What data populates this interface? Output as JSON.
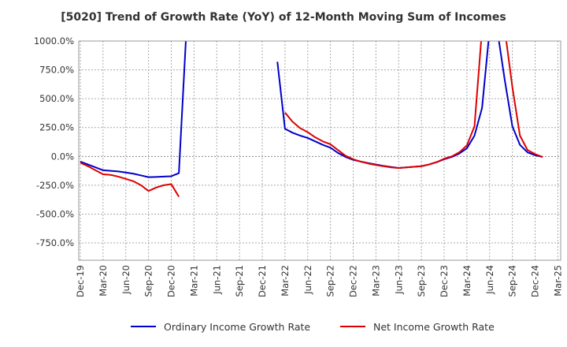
{
  "chart_data": {
    "type": "line",
    "title": "[5020]  Trend of Growth Rate (YoY) of 12-Month Moving Sum of Incomes",
    "xlabel": "",
    "ylabel": "",
    "ylim": [
      -900,
      1000
    ],
    "y_ticks": [
      1000,
      750,
      500,
      250,
      0,
      -250,
      -500,
      -750
    ],
    "y_tick_labels": [
      "1000.0%",
      "750.0%",
      "500.0%",
      "250.0%",
      "0.0%",
      "-250.0%",
      "-500.0%",
      "-750.0%"
    ],
    "x_ticks": [
      "Dec-19",
      "Mar-20",
      "Jun-20",
      "Sep-20",
      "Dec-20",
      "Mar-21",
      "Jun-21",
      "Sep-21",
      "Dec-21",
      "Mar-22",
      "Jun-22",
      "Sep-22",
      "Dec-22",
      "Mar-23",
      "Jun-23",
      "Sep-23",
      "Dec-23",
      "Mar-24",
      "Jun-24",
      "Sep-24",
      "Dec-24",
      "Mar-25"
    ],
    "grid": true,
    "legend_position": "bottom",
    "series": [
      {
        "name": "Ordinary Income Growth Rate",
        "color": "#0000cc",
        "points": [
          [
            "2019-12",
            -45
          ],
          [
            "2020-01",
            -70
          ],
          [
            "2020-02",
            -95
          ],
          [
            "2020-03",
            -120
          ],
          [
            "2020-04",
            -125
          ],
          [
            "2020-05",
            -130
          ],
          [
            "2020-06",
            -140
          ],
          [
            "2020-07",
            -150
          ],
          [
            "2020-08",
            -165
          ],
          [
            "2020-09",
            -180
          ],
          [
            "2020-10",
            -178
          ],
          [
            "2020-11",
            -175
          ],
          [
            "2020-12",
            -172
          ],
          [
            "2021-01",
            -145
          ],
          [
            "2021-02",
            1100
          ],
          null,
          [
            "2022-02",
            820
          ],
          [
            "2022-03",
            240
          ],
          [
            "2022-04",
            205
          ],
          [
            "2022-05",
            180
          ],
          [
            "2022-06",
            160
          ],
          [
            "2022-07",
            130
          ],
          [
            "2022-08",
            100
          ],
          [
            "2022-09",
            75
          ],
          [
            "2022-10",
            30
          ],
          [
            "2022-11",
            -5
          ],
          [
            "2022-12",
            -30
          ],
          [
            "2023-01",
            -45
          ],
          [
            "2023-02",
            -58
          ],
          [
            "2023-03",
            -70
          ],
          [
            "2023-04",
            -82
          ],
          [
            "2023-05",
            -92
          ],
          [
            "2023-06",
            -100
          ],
          [
            "2023-07",
            -95
          ],
          [
            "2023-08",
            -90
          ],
          [
            "2023-09",
            -85
          ],
          [
            "2023-10",
            -70
          ],
          [
            "2023-11",
            -50
          ],
          [
            "2023-12",
            -25
          ],
          [
            "2024-01",
            -5
          ],
          [
            "2024-02",
            25
          ],
          [
            "2024-03",
            70
          ],
          [
            "2024-04",
            180
          ],
          [
            "2024-05",
            420
          ],
          [
            "2024-06",
            1100
          ],
          [
            "2024-07",
            1100
          ],
          [
            "2024-08",
            660
          ],
          [
            "2024-09",
            260
          ],
          [
            "2024-10",
            100
          ],
          [
            "2024-11",
            35
          ],
          [
            "2024-12",
            10
          ],
          [
            "2025-01",
            -5
          ]
        ]
      },
      {
        "name": "Net Income Growth Rate",
        "color": "#dd0000",
        "points": [
          [
            "2019-12",
            -55
          ],
          [
            "2020-01",
            -85
          ],
          [
            "2020-02",
            -120
          ],
          [
            "2020-03",
            -155
          ],
          [
            "2020-04",
            -160
          ],
          [
            "2020-05",
            -175
          ],
          [
            "2020-06",
            -195
          ],
          [
            "2020-07",
            -215
          ],
          [
            "2020-08",
            -250
          ],
          [
            "2020-09",
            -300
          ],
          [
            "2020-10",
            -270
          ],
          [
            "2020-11",
            -250
          ],
          [
            "2020-12",
            -240
          ],
          [
            "2021-01",
            -350
          ],
          null,
          [
            "2022-03",
            380
          ],
          [
            "2022-04",
            300
          ],
          [
            "2022-05",
            245
          ],
          [
            "2022-06",
            210
          ],
          [
            "2022-07",
            165
          ],
          [
            "2022-08",
            130
          ],
          [
            "2022-09",
            105
          ],
          [
            "2022-10",
            55
          ],
          [
            "2022-11",
            5
          ],
          [
            "2022-12",
            -25
          ],
          [
            "2023-01",
            -45
          ],
          [
            "2023-02",
            -62
          ],
          [
            "2023-03",
            -75
          ],
          [
            "2023-04",
            -85
          ],
          [
            "2023-05",
            -95
          ],
          [
            "2023-06",
            -100
          ],
          [
            "2023-07",
            -95
          ],
          [
            "2023-08",
            -90
          ],
          [
            "2023-09",
            -85
          ],
          [
            "2023-10",
            -70
          ],
          [
            "2023-11",
            -50
          ],
          [
            "2023-12",
            -20
          ],
          [
            "2024-01",
            0
          ],
          [
            "2024-02",
            35
          ],
          [
            "2024-03",
            95
          ],
          [
            "2024-04",
            260
          ],
          [
            "2024-05",
            1100
          ],
          null,
          [
            "2024-08",
            1100
          ],
          [
            "2024-09",
            600
          ],
          [
            "2024-10",
            180
          ],
          [
            "2024-11",
            55
          ],
          [
            "2024-12",
            20
          ],
          [
            "2025-01",
            -5
          ]
        ]
      }
    ]
  }
}
